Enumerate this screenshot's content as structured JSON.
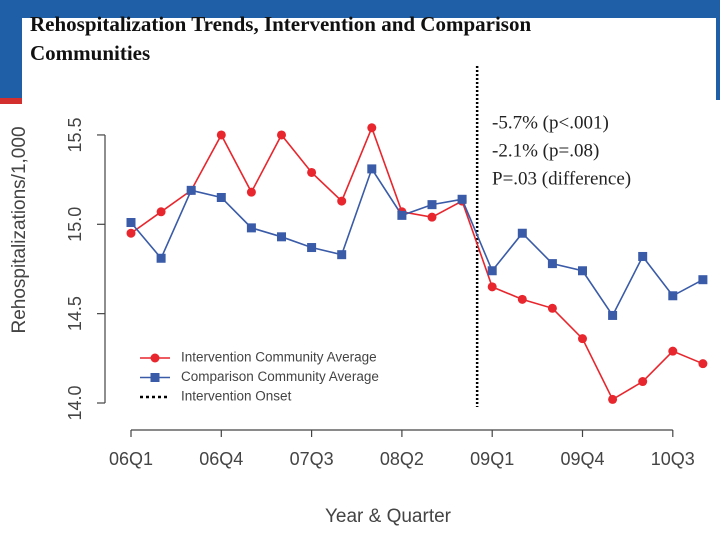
{
  "chart_data": {
    "type": "line",
    "title": "Rehospitalization Trends, Intervention and Comparison Communities",
    "x_label": "Year & Quarter",
    "y_label": "Rehospitalizations/1,000",
    "categories": [
      "06Q1",
      null,
      null,
      "06Q4",
      null,
      null,
      "07Q3",
      null,
      null,
      "08Q2",
      null,
      null,
      "09Q1",
      null,
      null,
      "09Q4",
      null,
      null,
      "10Q3",
      null
    ],
    "series": [
      {
        "name": "Intervention Community Average",
        "color": "#e8262d",
        "marker": "circle",
        "values": [
          14.95,
          15.07,
          15.19,
          15.5,
          15.18,
          15.5,
          15.29,
          15.13,
          15.54,
          15.07,
          15.04,
          15.13,
          14.65,
          14.58,
          14.53,
          14.36,
          14.02,
          14.12,
          14.29,
          14.22
        ]
      },
      {
        "name": "Comparison Community Average",
        "color": "#3a5ba8",
        "marker": "square",
        "values": [
          15.01,
          14.81,
          15.19,
          15.15,
          14.98,
          14.93,
          14.87,
          14.83,
          15.31,
          15.05,
          15.11,
          15.14,
          14.74,
          14.95,
          14.78,
          14.74,
          14.49,
          14.82,
          14.6,
          14.69
        ]
      }
    ],
    "onset_line": {
      "name": "Intervention Onset",
      "color": "#000000"
    },
    "annotations": [
      "-5.7% (p<.001)",
      "-2.1% (p=.08)",
      "P=.03 (difference)"
    ],
    "ylim": [
      14.0,
      15.9
    ],
    "yticks": [
      {
        "value": 14.0,
        "label": "14.0"
      },
      14.5,
      {
        "value": 15.0,
        "label": "15.0"
      },
      15.5
    ],
    "legend": "lower left"
  }
}
